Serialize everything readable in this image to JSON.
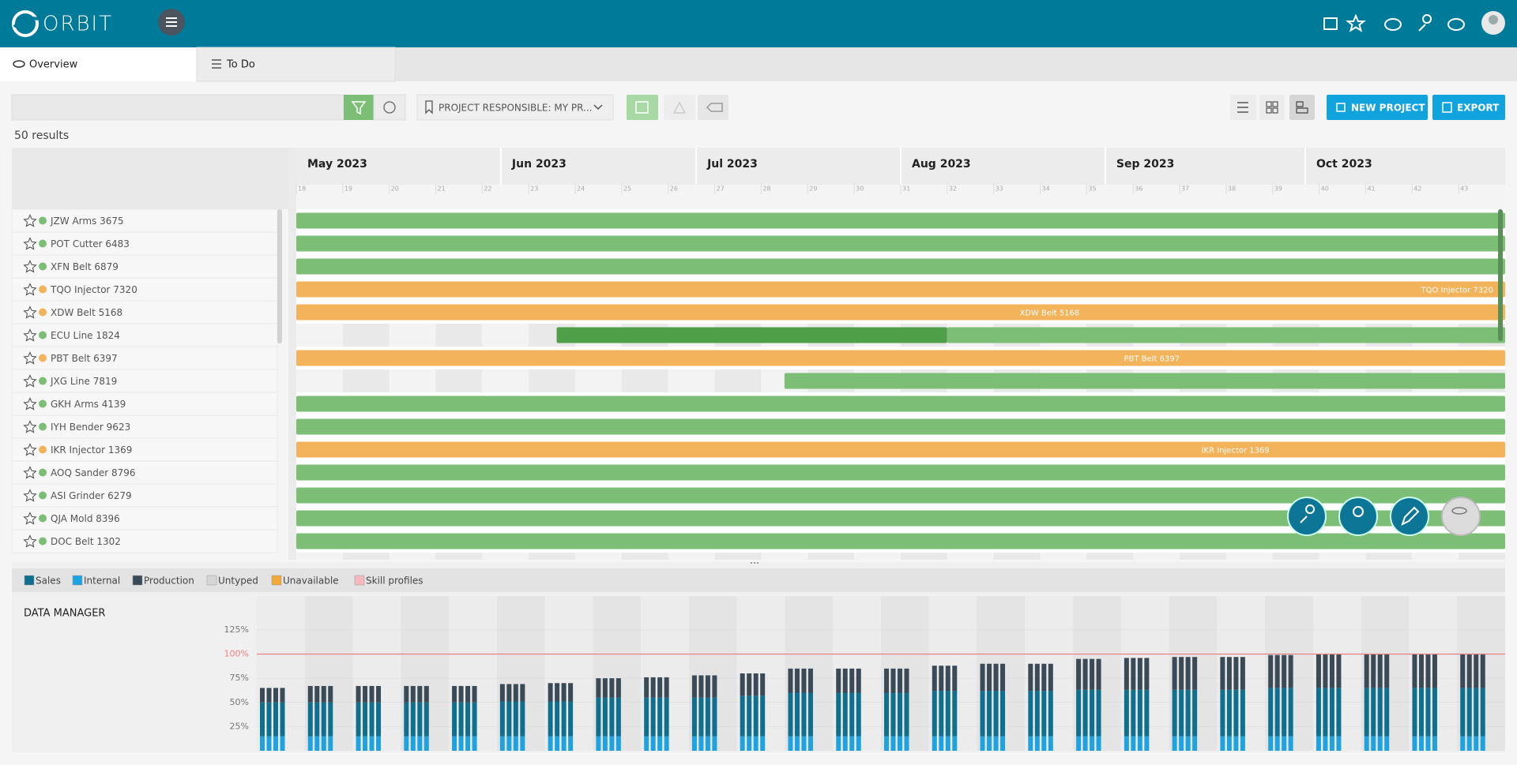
{
  "header": {
    "logo": "ORBIT"
  },
  "tabs": [
    "Overview",
    "To Do"
  ],
  "toolbar": {
    "filter": "PROJECT RESPONSIBLE: MY PR...",
    "new_project": "NEW PROJECT",
    "export": "EXPORT"
  },
  "results": "50 results",
  "gantt": {
    "months": [
      "May 2023",
      "Jun 2023",
      "Jul 2023",
      "Aug 2023",
      "Sep 2023",
      "Oct 2023"
    ],
    "weeks": [
      18,
      19,
      20,
      21,
      22,
      23,
      24,
      25,
      26,
      27,
      28,
      29,
      30,
      31,
      32,
      33,
      34,
      35,
      36,
      37,
      38,
      39,
      40,
      41,
      42,
      43
    ],
    "rows": [
      {
        "name": "JZW Arms 3675",
        "color": "#7dbe76"
      },
      {
        "name": "POT Cutter 6483",
        "color": "#7dbe76"
      },
      {
        "name": "XFN Belt 6879",
        "color": "#7dbe76"
      },
      {
        "name": "TQO Injector 7320",
        "color": "#f2b35a"
      },
      {
        "name": "XDW Belt 5168",
        "color": "#f2b35a"
      },
      {
        "name": "ECU Line 1824",
        "color": "#7dbe76"
      },
      {
        "name": "PBT Belt 6397",
        "color": "#f2b35a"
      },
      {
        "name": "JXG Line 7819",
        "color": "#7dbe76"
      },
      {
        "name": "GKH Arms 4139",
        "color": "#7dbe76"
      },
      {
        "name": "IYH Bender 9623",
        "color": "#7dbe76"
      },
      {
        "name": "IKR Injector 1369",
        "color": "#f2b35a"
      },
      {
        "name": "AOQ Sander 8796",
        "color": "#7dbe76"
      },
      {
        "name": "ASI Grinder 6279",
        "color": "#7dbe76"
      },
      {
        "name": "QJA Mold 8396",
        "color": "#7dbe76"
      },
      {
        "name": "DOC Belt 1302",
        "color": "#7dbe76"
      }
    ]
  },
  "chart_data": {
    "type": "bar",
    "stacked": true,
    "title": "DATA MANAGER",
    "categories": [
      null,
      null,
      null,
      null,
      null,
      null,
      null,
      null,
      null,
      null,
      null,
      null,
      null,
      null,
      null,
      null,
      null,
      null,
      null,
      null,
      null,
      null,
      null,
      null,
      null,
      null
    ],
    "series": [
      {
        "name": "Sales",
        "color": "#0f6f8f",
        "values": [
          35,
          35,
          35,
          35,
          35,
          36,
          36,
          40,
          40,
          40,
          42,
          45,
          45,
          45,
          47,
          47,
          47,
          48,
          48,
          48,
          48,
          50,
          50,
          50,
          50,
          50
        ]
      },
      {
        "name": "Internal",
        "color": "#1fa3e0",
        "values": [
          15,
          15,
          15,
          15,
          15,
          15,
          15,
          15,
          15,
          15,
          15,
          15,
          15,
          15,
          15,
          15,
          15,
          15,
          15,
          15,
          15,
          15,
          15,
          15,
          15,
          15
        ]
      },
      {
        "name": "Production",
        "color": "#3b4a57",
        "values": [
          15,
          17,
          17,
          17,
          17,
          18,
          19,
          20,
          21,
          23,
          23,
          25,
          25,
          25,
          26,
          28,
          28,
          32,
          33,
          34,
          34,
          34,
          35,
          35,
          35,
          35
        ]
      }
    ],
    "other_legend": [
      {
        "name": "Untyped",
        "color": "#d6d6d6"
      },
      {
        "name": "Unavailable",
        "color": "#f2a93b"
      },
      {
        "name": "Skill profiles",
        "color": "#f5b8bd"
      }
    ],
    "ylim": [
      0,
      160
    ],
    "yticks": [
      {
        "value": 25,
        "label": "25%"
      },
      {
        "value": 50,
        "label": "50%"
      },
      {
        "value": 75,
        "label": "75%"
      },
      {
        "value": 100,
        "label": "100%"
      },
      {
        "value": 125,
        "label": "125%"
      }
    ],
    "reference_line": {
      "value": 100,
      "color": "#f08080"
    }
  }
}
